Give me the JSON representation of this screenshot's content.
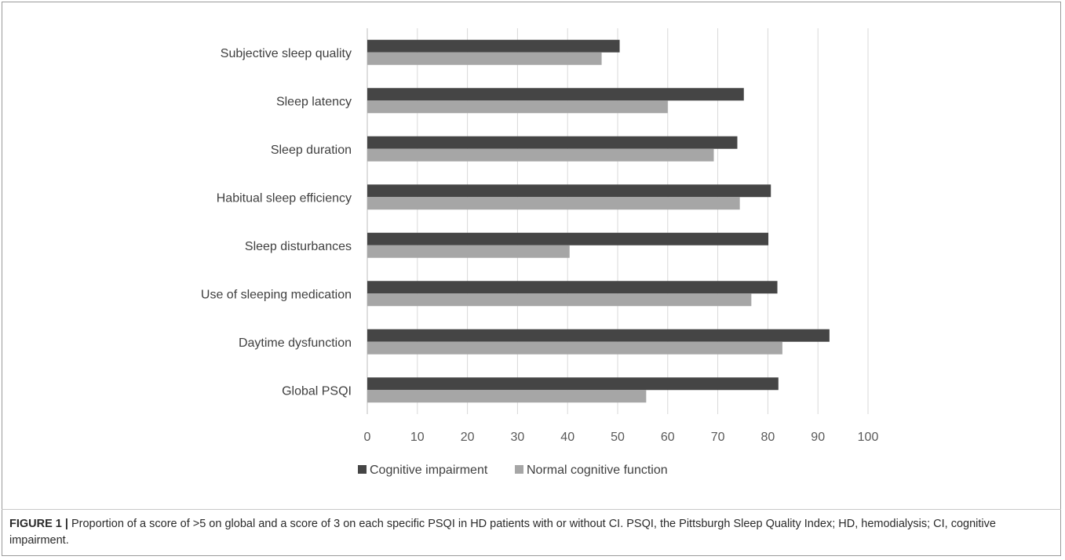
{
  "chart_data": {
    "type": "bar",
    "orientation": "horizontal",
    "categories": [
      "Subjective sleep quality",
      "Sleep latency",
      "Sleep duration",
      "Habitual sleep efficiency",
      "Sleep disturbances",
      "Use of sleeping medication",
      "Daytime dysfunction",
      "Global PSQI"
    ],
    "series": [
      {
        "name": "Cognitive impairment",
        "color": "#454545",
        "values": [
          50.4,
          75.2,
          73.9,
          80.6,
          80.1,
          81.9,
          92.3,
          82.1
        ]
      },
      {
        "name": "Normal cognitive function",
        "color": "#a6a6a6",
        "values": [
          46.8,
          60.0,
          69.2,
          74.4,
          40.4,
          76.7,
          82.9,
          55.7
        ]
      }
    ],
    "xlim": [
      0,
      100
    ],
    "xticks": [
      "0",
      "10",
      "20",
      "30",
      "40",
      "50",
      "60",
      "70",
      "80",
      "90",
      "100"
    ],
    "grid": "vertical",
    "legend_position": "bottom",
    "title": "",
    "xlabel": "",
    "ylabel": ""
  },
  "caption": {
    "label": "FIGURE 1 |",
    "text": " Proportion of a score of >5 on global and a score of 3 on each specific PSQI in HD patients with or without CI. PSQI, the Pittsburgh Sleep Quality Index; HD, hemodialysis; CI, cognitive impairment."
  }
}
